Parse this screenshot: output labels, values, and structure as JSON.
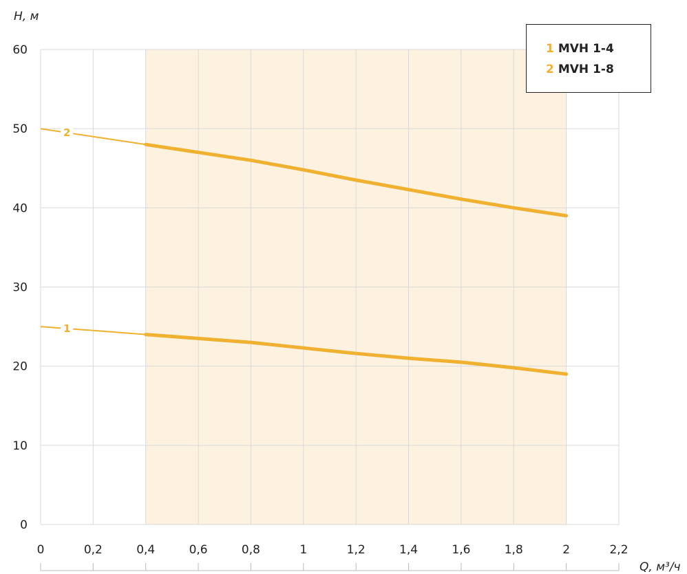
{
  "chart_data": {
    "type": "line",
    "title": "",
    "xlabel": "Q, м³/ч",
    "ylabel": "H, м",
    "xlim": [
      0,
      2.2
    ],
    "ylim": [
      0,
      60
    ],
    "x_ticks": [
      0,
      0.2,
      0.4,
      0.6,
      0.8,
      1,
      1.2,
      1.4,
      1.6,
      1.8,
      2,
      2.2
    ],
    "x_tick_labels": [
      "0",
      "0,2",
      "0,4",
      "0,6",
      "0,8",
      "1",
      "1,2",
      "1,4",
      "1,6",
      "1,8",
      "2",
      "2,2"
    ],
    "y_ticks": [
      0,
      10,
      20,
      30,
      40,
      50,
      60
    ],
    "y_tick_labels": [
      "0",
      "10",
      "20",
      "30",
      "40",
      "50",
      "60"
    ],
    "grid": true,
    "working_range": [
      0.4,
      2.0
    ],
    "legend_position": "top-right",
    "series": [
      {
        "id": "1",
        "name": "MVH 1-4",
        "x": [
          0,
          0.2,
          0.4,
          0.6,
          0.8,
          1.0,
          1.2,
          1.4,
          1.6,
          1.8,
          2.0
        ],
        "y": [
          25,
          24.5,
          24,
          23.5,
          23,
          22.3,
          21.6,
          21,
          20.5,
          19.8,
          19
        ]
      },
      {
        "id": "2",
        "name": "MVH 1-8",
        "x": [
          0,
          0.2,
          0.4,
          0.6,
          0.8,
          1.0,
          1.2,
          1.4,
          1.6,
          1.8,
          2.0
        ],
        "y": [
          50,
          49,
          48,
          47,
          46,
          44.8,
          43.5,
          42.3,
          41.1,
          40,
          39
        ]
      }
    ]
  },
  "colors": {
    "curve": "#f0b030",
    "working_range_fill": "#fdf1e0",
    "grid": "#d9d9d9",
    "axis_text": "#222222"
  }
}
